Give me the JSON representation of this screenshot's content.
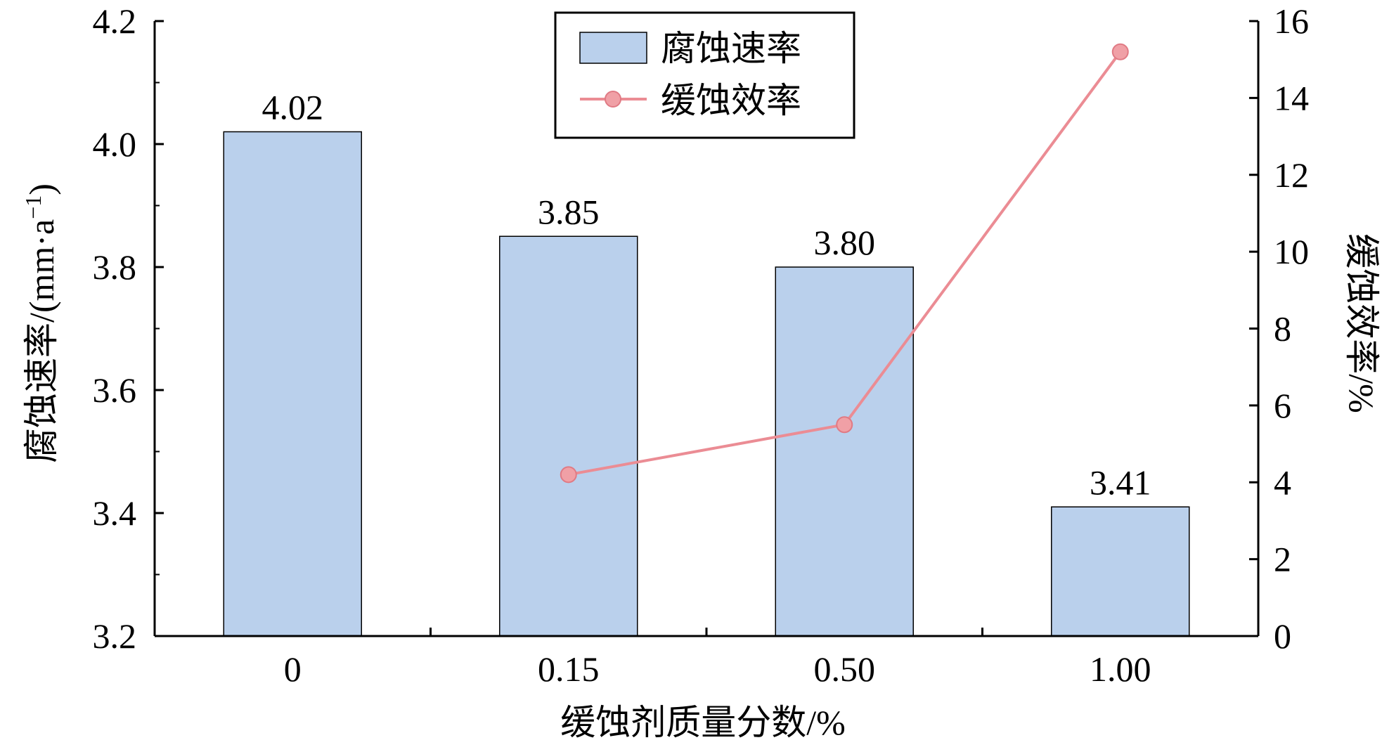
{
  "chart_data": {
    "type": "bar",
    "categories": [
      "0",
      "0.15",
      "0.50",
      "1.00"
    ],
    "series": [
      {
        "name": "腐蚀速率",
        "type": "bar",
        "axis": "left",
        "values": [
          4.02,
          3.85,
          3.8,
          3.41
        ],
        "data_labels": [
          "4.02",
          "3.85",
          "3.80",
          "3.41"
        ],
        "color": "#bad0ec"
      },
      {
        "name": "缓蚀效率",
        "type": "line",
        "axis": "right",
        "values": [
          null,
          4.2,
          5.5,
          15.2
        ],
        "color": "#eb8c94"
      }
    ],
    "xlabel": "缓蚀剂质量分数/%",
    "ylabel": "腐蚀速率/(mm·a⁻¹)",
    "ylabel_right": "缓蚀效率/%",
    "ylim": [
      3.2,
      4.2
    ],
    "yticks": [
      "3.2",
      "3.4",
      "3.6",
      "3.8",
      "4.0",
      "4.2"
    ],
    "ylim_right": [
      0,
      16
    ],
    "yticks_right": [
      "0",
      "2",
      "4",
      "6",
      "8",
      "10",
      "12",
      "14",
      "16"
    ],
    "legend_position": "top-center",
    "grid": false
  }
}
